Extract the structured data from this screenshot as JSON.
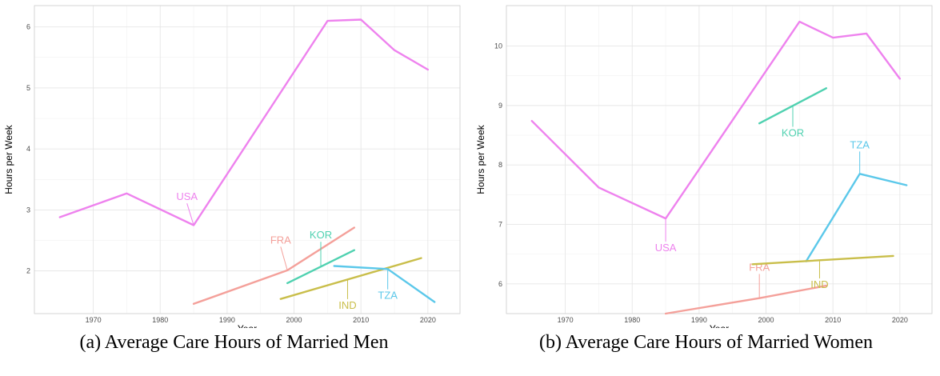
{
  "panels": [
    {
      "caption": "(a) Average Care Hours of Married Men",
      "chart_data": {
        "type": "line",
        "xlabel": "Year",
        "ylabel": "Hours per Week",
        "xlim": [
          1961.2,
          2024.8
        ],
        "ylim": [
          1.3,
          6.35
        ],
        "xticks": [
          1970,
          1980,
          1990,
          2000,
          2010,
          2020
        ],
        "yticks": [
          2,
          3,
          4,
          5,
          6
        ],
        "grid": true,
        "series": [
          {
            "name": "USA",
            "color": "#EE82EE",
            "x": [
              1965,
              1975,
              1985,
              2005,
              2010,
              2015,
              2020
            ],
            "y": [
              2.88,
              3.27,
              2.75,
              6.1,
              6.12,
              5.62,
              5.3
            ],
            "label_at": [
              1984,
              3.16
            ],
            "leader_from": [
              1985,
              2.75
            ]
          },
          {
            "name": "FRA",
            "color": "#F4A09A",
            "x": [
              1985,
              1999,
              2009
            ],
            "y": [
              1.46,
              2.01,
              2.71
            ],
            "label_at": [
              1998,
              2.45
            ],
            "leader_from": [
              1999,
              2.01
            ]
          },
          {
            "name": "KOR",
            "color": "#4FD1B0",
            "x": [
              1999,
              2009
            ],
            "y": [
              1.8,
              2.34
            ],
            "label_at": [
              2004,
              2.53
            ],
            "leader_from": [
              2004,
              2.07
            ]
          },
          {
            "name": "IND",
            "color": "#C9BE4A",
            "x": [
              1998,
              2019
            ],
            "y": [
              1.54,
              2.21
            ],
            "label_at": [
              2008,
              1.38
            ],
            "leader_from": [
              2008,
              1.86
            ]
          },
          {
            "name": "TZA",
            "color": "#5BC8EA",
            "x": [
              2006,
              2014,
              2021
            ],
            "y": [
              2.08,
              2.03,
              1.49
            ],
            "label_at": [
              2014,
              1.54
            ],
            "leader_from": [
              2014,
              2.03
            ]
          }
        ]
      }
    },
    {
      "caption": "(b) Average Care Hours of Married Women",
      "chart_data": {
        "type": "line",
        "xlabel": "Year",
        "ylabel": "Hours per Week",
        "xlim": [
          1961.2,
          2024.8
        ],
        "ylim": [
          5.5,
          10.68
        ],
        "xticks": [
          1970,
          1980,
          1990,
          2000,
          2010,
          2020
        ],
        "yticks": [
          6,
          7,
          8,
          9,
          10
        ],
        "grid": true,
        "series": [
          {
            "name": "USA",
            "color": "#EE82EE",
            "x": [
              1965,
              1975,
              1985,
              2005,
              2010,
              2015,
              2020
            ],
            "y": [
              8.74,
              7.62,
              7.1,
              10.41,
              10.14,
              10.21,
              9.45
            ],
            "label_at": [
              1985,
              6.55
            ],
            "leader_from": [
              1985,
              7.1
            ]
          },
          {
            "name": "KOR",
            "color": "#4FD1B0",
            "x": [
              1999,
              2009
            ],
            "y": [
              8.7,
              9.29
            ],
            "label_at": [
              2004,
              8.48
            ],
            "leader_from": [
              2004,
              9.0
            ]
          },
          {
            "name": "TZA",
            "color": "#5BC8EA",
            "x": [
              2006,
              2014,
              2021
            ],
            "y": [
              6.38,
              7.85,
              7.66
            ],
            "label_at": [
              2014,
              8.28
            ],
            "leader_from": [
              2014,
              7.85
            ]
          },
          {
            "name": "FRA",
            "color": "#F4A09A",
            "x": [
              1985,
              1999,
              2009
            ],
            "y": [
              5.5,
              5.76,
              5.97
            ],
            "label_at": [
              1999,
              6.22
            ],
            "leader_from": [
              1999,
              5.76
            ]
          },
          {
            "name": "IND",
            "color": "#C9BE4A",
            "x": [
              1998,
              2019
            ],
            "y": [
              6.33,
              6.47
            ],
            "label_at": [
              2008,
              5.93
            ],
            "leader_from": [
              2008,
              6.38
            ]
          }
        ]
      }
    }
  ]
}
